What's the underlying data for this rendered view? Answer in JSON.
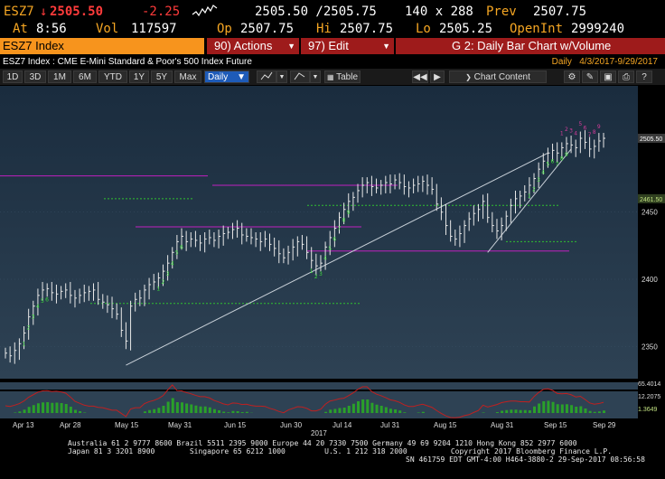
{
  "quote": {
    "ticker": "ESZ7",
    "last": "2505.50",
    "change": "-2.25",
    "bid_ask": "2505.50 /2505.75",
    "size": "140 x 288",
    "prev_label": "Prev",
    "prev": "2507.75",
    "at_label": "At",
    "time": "8:56",
    "vol_label": "Vol",
    "volume": "117597",
    "op_label": "Op",
    "open": "2507.75",
    "hi_label": "Hi",
    "high": "2507.75",
    "lo_label": "Lo",
    "low": "2505.25",
    "oi_label": "OpenInt",
    "open_interest": "2999240"
  },
  "command_bar": {
    "ticker_field": "ESZ7 Index",
    "actions": "90) Actions",
    "edit": "97) Edit",
    "chart_title": "G 2: Daily Bar Chart w/Volume"
  },
  "security_row": {
    "description": "ESZ7 Index : CME E-Mini Standard & Poor's 500 Index Future",
    "period": "Daily",
    "range": "4/3/2017-9/29/2017"
  },
  "toolbar": {
    "ranges": [
      "1D",
      "3D",
      "1M",
      "6M",
      "YTD",
      "1Y",
      "5Y",
      "Max"
    ],
    "frequency": "Daily",
    "table": "Table",
    "chart_content": "Chart Content"
  },
  "chart_data": {
    "type": "bar",
    "x_ticks": [
      "Apr 13",
      "Apr 28",
      "May 15",
      "May 31",
      "Jun 15",
      "Jun 30",
      "Jul 14",
      "Jul 31",
      "Aug 15",
      "Aug 31",
      "Sep 15",
      "Sep 29"
    ],
    "year_label": "2017",
    "y_ticks": [
      2350,
      2400,
      2450
    ],
    "ylim": [
      2330,
      2540
    ],
    "price_labels": [
      "2505.50",
      "2461.50"
    ],
    "lower_panel_labels": [
      "65.4014",
      "12.2075",
      "1.3649"
    ],
    "close": [
      2345,
      2343,
      2347,
      2352,
      2360,
      2372,
      2380,
      2388,
      2392,
      2393,
      2390,
      2389,
      2391,
      2392,
      2388,
      2386,
      2388,
      2390,
      2391,
      2392,
      2385,
      2383,
      2381,
      2378,
      2374,
      2362,
      2354,
      2380,
      2385,
      2386,
      2392,
      2396,
      2398,
      2401,
      2406,
      2412,
      2420,
      2428,
      2432,
      2428,
      2430,
      2429,
      2427,
      2430,
      2431,
      2429,
      2432,
      2434,
      2435,
      2437,
      2438,
      2433,
      2432,
      2431,
      2430,
      2428,
      2430,
      2426,
      2423,
      2419,
      2416,
      2420,
      2424,
      2428,
      2426,
      2420,
      2414,
      2410,
      2412,
      2424,
      2431,
      2438,
      2446,
      2452,
      2458,
      2461,
      2466,
      2470,
      2472,
      2469,
      2468,
      2470,
      2472,
      2471,
      2474,
      2472,
      2469,
      2468,
      2470,
      2471,
      2473,
      2470,
      2467,
      2456,
      2450,
      2440,
      2432,
      2430,
      2434,
      2440,
      2445,
      2449,
      2452,
      2458,
      2446,
      2440,
      2436,
      2440,
      2447,
      2455,
      2460,
      2462,
      2465,
      2470,
      2475,
      2482,
      2488,
      2494,
      2496,
      2494,
      2498,
      2501,
      2500,
      2498,
      2505,
      2502,
      2497,
      2499,
      2503,
      2505
    ],
    "horizontal_levels": [
      2477,
      2460,
      2470,
      2455,
      2439,
      2428,
      2421,
      2382
    ]
  },
  "footer": {
    "line1": "Australia 61 2 9777 8600 Brazil 5511 2395 9000 Europe 44 20 7330 7500 Germany 49 69 9204 1210 Hong Kong 852 2977 6000",
    "line2": "Japan 81 3 3201 8900        Singapore 65 6212 1000         U.S. 1 212 318 2000          Copyright 2017 Bloomberg Finance L.P.",
    "line3": "SN 461759 EDT  GMT-4:00 H464-3880-2 29-Sep-2017 08:56:58"
  },
  "colors": {
    "header_amber": "#f5a623",
    "down_red": "#ff3b3b",
    "menu_red": "#9e1b1b",
    "ticker_orange": "#f7941d",
    "price_bar": "#e8e8e8",
    "level_magenta": "#c020c0",
    "level_green": "#30c030"
  }
}
